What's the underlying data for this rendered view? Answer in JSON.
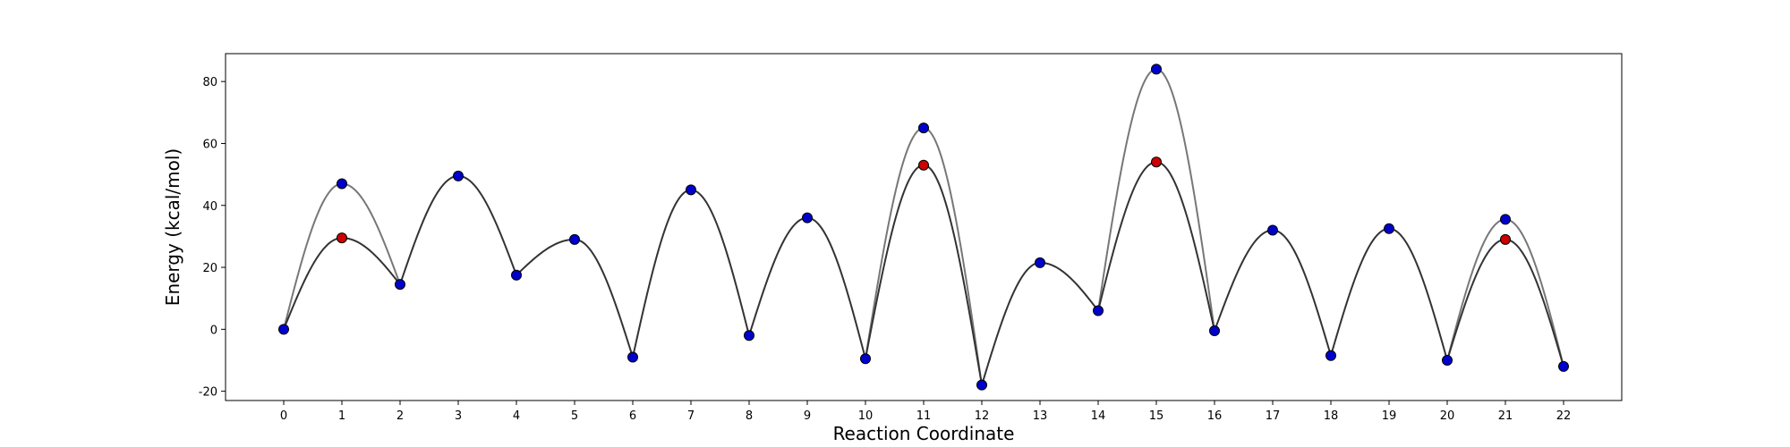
{
  "chart_data": {
    "type": "line",
    "title": "",
    "xlabel": "Reaction Coordinate",
    "ylabel": "Energy (kcal/mol)",
    "xlim": [
      -1,
      23
    ],
    "ylim": [
      -23,
      89
    ],
    "x_ticks": [
      0,
      1,
      2,
      3,
      4,
      5,
      6,
      7,
      8,
      9,
      10,
      11,
      12,
      13,
      14,
      15,
      16,
      17,
      18,
      19,
      20,
      21,
      22
    ],
    "y_ticks": [
      -20,
      0,
      20,
      40,
      60,
      80
    ],
    "grid": false,
    "legend": "none",
    "colors": {
      "upper_curve": "#777777",
      "lower_curve": "#333333",
      "blue_marker": "#0000cc",
      "red_marker": "#cc0000",
      "marker_edge": "#000000"
    },
    "series": [
      {
        "points": [
          [
            0,
            0
          ],
          [
            1,
            47
          ],
          [
            2,
            14.5
          ],
          [
            3,
            49.5
          ],
          [
            4,
            17.5
          ],
          [
            5,
            29
          ],
          [
            6,
            -9
          ],
          [
            7,
            45
          ],
          [
            8,
            -2
          ],
          [
            9,
            36
          ],
          [
            10,
            -9.5
          ],
          [
            11,
            65
          ],
          [
            12,
            -18
          ],
          [
            13,
            21.5
          ],
          [
            14,
            6
          ],
          [
            15,
            84
          ],
          [
            16,
            -0.5
          ],
          [
            17,
            32
          ],
          [
            18,
            -8.5
          ],
          [
            19,
            32.5
          ],
          [
            20,
            -10
          ],
          [
            21,
            35.5
          ],
          [
            22,
            -12
          ]
        ],
        "marker_color": "blue"
      },
      {
        "points": [
          [
            0,
            0
          ],
          [
            1,
            29.5
          ],
          [
            2,
            14.5
          ],
          [
            3,
            49.5
          ],
          [
            4,
            17.5
          ],
          [
            5,
            29
          ],
          [
            6,
            -9
          ],
          [
            7,
            45
          ],
          [
            8,
            -2
          ],
          [
            9,
            36
          ],
          [
            10,
            -9.5
          ],
          [
            11,
            53
          ],
          [
            12,
            -18
          ],
          [
            13,
            21.5
          ],
          [
            14,
            6
          ],
          [
            15,
            54
          ],
          [
            16,
            -0.5
          ],
          [
            17,
            32
          ],
          [
            18,
            -8.5
          ],
          [
            19,
            32.5
          ],
          [
            20,
            -10
          ],
          [
            21,
            29
          ],
          [
            22,
            -12
          ]
        ],
        "marker_color_at": {
          "1": "red",
          "11": "red",
          "15": "red",
          "21": "red"
        }
      }
    ]
  }
}
